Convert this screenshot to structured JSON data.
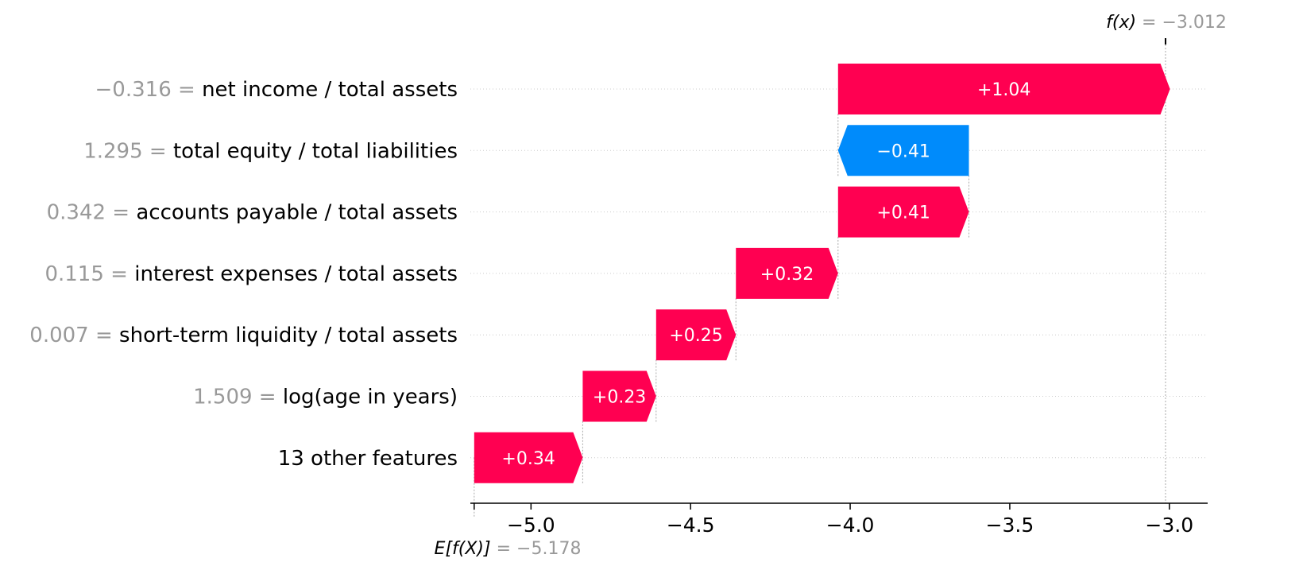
{
  "chart_data": {
    "type": "waterfall",
    "base_value": -5.178,
    "base_label": {
      "prefix": "E[f(X)]",
      "equals": " = ",
      "value": "−5.178"
    },
    "output_value": -3.012,
    "output_label": {
      "prefix": "f(x)",
      "equals": " = ",
      "value": "−3.012"
    },
    "xlim": [
      -5.19,
      -2.88
    ],
    "xticks": [
      -5.0,
      -4.5,
      -4.0,
      -3.5,
      -3.0
    ],
    "xtick_labels": [
      "−5.0",
      "−4.5",
      "−4.0",
      "−3.5",
      "−3.0"
    ],
    "colors": {
      "positive": "#ff0051",
      "negative": "#008bfb",
      "value_text": "#999999",
      "label_text": "#000000"
    },
    "features": [
      {
        "value_text": "−0.316",
        "name": "net income / total assets",
        "contribution": 1.04,
        "label": "+1.04"
      },
      {
        "value_text": "1.295",
        "name": "total equity / total liabilities",
        "contribution": -0.41,
        "label": "−0.41"
      },
      {
        "value_text": "0.342",
        "name": "accounts payable / total assets",
        "contribution": 0.41,
        "label": "+0.41"
      },
      {
        "value_text": "0.115",
        "name": "interest expenses / total assets",
        "contribution": 0.32,
        "label": "+0.32"
      },
      {
        "value_text": "0.007",
        "name": "short-term liquidity / total assets",
        "contribution": 0.25,
        "label": "+0.25"
      },
      {
        "value_text": "1.509",
        "name": "log(age in years)",
        "contribution": 0.23,
        "label": "+0.23"
      },
      {
        "value_text": "",
        "name": "13 other features",
        "contribution": 0.34,
        "label": "+0.34"
      }
    ]
  }
}
